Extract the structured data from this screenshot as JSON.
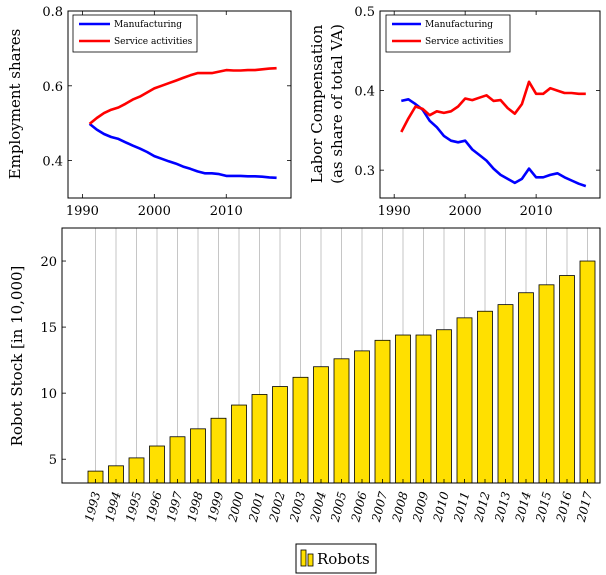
{
  "chart_data": [
    {
      "type": "line",
      "title": "",
      "xlabel": "",
      "ylabel": "Employment shares",
      "xlim": [
        1988,
        2019
      ],
      "ylim": [
        0.3,
        0.8
      ],
      "x_ticks": [
        1990,
        2000,
        2010
      ],
      "y_ticks": [
        0.4,
        0.6,
        0.8
      ],
      "x_tick_labels": [
        "1990",
        "2000",
        "2010"
      ],
      "y_tick_labels": [
        "0.4",
        "0.6",
        "0.8"
      ],
      "legend_position": "top-left",
      "grid": false,
      "series": [
        {
          "name": "Manufacturing",
          "color": "#0000ff",
          "x": [
            1991,
            1992,
            1993,
            1994,
            1995,
            1996,
            1997,
            1998,
            1999,
            2000,
            2001,
            2002,
            2003,
            2004,
            2005,
            2006,
            2007,
            2008,
            2009,
            2010,
            2011,
            2012,
            2013,
            2014,
            2015,
            2016,
            2017
          ],
          "y": [
            0.498,
            0.483,
            0.471,
            0.463,
            0.458,
            0.449,
            0.44,
            0.432,
            0.423,
            0.412,
            0.405,
            0.398,
            0.392,
            0.384,
            0.378,
            0.371,
            0.366,
            0.366,
            0.364,
            0.359,
            0.359,
            0.359,
            0.358,
            0.358,
            0.357,
            0.355,
            0.354
          ]
        },
        {
          "name": "Service activities",
          "color": "#ff0000",
          "x": [
            1991,
            1992,
            1993,
            1994,
            1995,
            1996,
            1997,
            1998,
            1999,
            2000,
            2001,
            2002,
            2003,
            2004,
            2005,
            2006,
            2007,
            2008,
            2009,
            2010,
            2011,
            2012,
            2013,
            2014,
            2015,
            2016,
            2017
          ],
          "y": [
            0.498,
            0.514,
            0.527,
            0.536,
            0.542,
            0.552,
            0.563,
            0.571,
            0.582,
            0.593,
            0.6,
            0.607,
            0.614,
            0.621,
            0.628,
            0.634,
            0.634,
            0.634,
            0.638,
            0.642,
            0.641,
            0.641,
            0.642,
            0.642,
            0.644,
            0.646,
            0.647
          ]
        }
      ]
    },
    {
      "type": "line",
      "title": "",
      "xlabel": "",
      "ylabel": "Labor Compensation",
      "ylabel2": "(as share of total VA)",
      "xlim": [
        1988,
        2019
      ],
      "ylim": [
        0.265,
        0.5
      ],
      "x_ticks": [
        1990,
        2000,
        2010
      ],
      "y_ticks": [
        0.3,
        0.4,
        0.5
      ],
      "x_tick_labels": [
        "1990",
        "2000",
        "2010"
      ],
      "y_tick_labels": [
        "0.3",
        "0.4",
        "0.5"
      ],
      "legend_position": "top-left",
      "grid": false,
      "series": [
        {
          "name": "Manufacturing",
          "color": "#0000ff",
          "x": [
            1991,
            1992,
            1993,
            1994,
            1995,
            1996,
            1997,
            1998,
            1999,
            2000,
            2001,
            2002,
            2003,
            2004,
            2005,
            2006,
            2007,
            2008,
            2009,
            2010,
            2011,
            2012,
            2013,
            2014,
            2015,
            2016,
            2017
          ],
          "y": [
            0.387,
            0.389,
            0.383,
            0.376,
            0.362,
            0.354,
            0.343,
            0.337,
            0.335,
            0.337,
            0.326,
            0.319,
            0.312,
            0.302,
            0.294,
            0.289,
            0.284,
            0.289,
            0.302,
            0.291,
            0.291,
            0.294,
            0.296,
            0.291,
            0.287,
            0.283,
            0.28
          ]
        },
        {
          "name": "Service activities",
          "color": "#ff0000",
          "x": [
            1991,
            1992,
            1993,
            1994,
            1995,
            1996,
            1997,
            1998,
            1999,
            2000,
            2001,
            2002,
            2003,
            2004,
            2005,
            2006,
            2007,
            2008,
            2009,
            2010,
            2011,
            2012,
            2013,
            2014,
            2015,
            2016,
            2017
          ],
          "y": [
            0.348,
            0.365,
            0.38,
            0.377,
            0.369,
            0.374,
            0.372,
            0.374,
            0.38,
            0.39,
            0.388,
            0.391,
            0.394,
            0.387,
            0.388,
            0.378,
            0.371,
            0.383,
            0.411,
            0.396,
            0.396,
            0.403,
            0.4,
            0.397,
            0.397,
            0.396,
            0.396
          ]
        }
      ]
    },
    {
      "type": "bar",
      "title": "",
      "xlabel": "",
      "ylabel": "Robot Stock [in 10,000]",
      "ylim": [
        3.2,
        22.5
      ],
      "y_ticks": [
        5,
        10,
        15,
        20
      ],
      "y_tick_labels": [
        "5",
        "10",
        "15",
        "20"
      ],
      "grid": "vertical",
      "legend_position": "bottom-center",
      "bar_color": "#ffe000",
      "categories": [
        "1993",
        "1994",
        "1995",
        "1996",
        "1997",
        "1998",
        "1999",
        "2000",
        "2001",
        "2002",
        "2003",
        "2004",
        "2005",
        "2006",
        "2007",
        "2008",
        "2009",
        "2010",
        "2011",
        "2012",
        "2013",
        "2014",
        "2015",
        "2016",
        "2017"
      ],
      "series": [
        {
          "name": "Robots",
          "values": [
            4.1,
            4.5,
            5.1,
            6.0,
            6.7,
            7.3,
            8.1,
            9.1,
            9.9,
            10.5,
            11.2,
            12.0,
            12.6,
            13.2,
            14.0,
            14.4,
            14.4,
            14.8,
            15.7,
            16.2,
            16.7,
            17.6,
            18.2,
            18.9,
            20.0
          ]
        }
      ]
    }
  ]
}
